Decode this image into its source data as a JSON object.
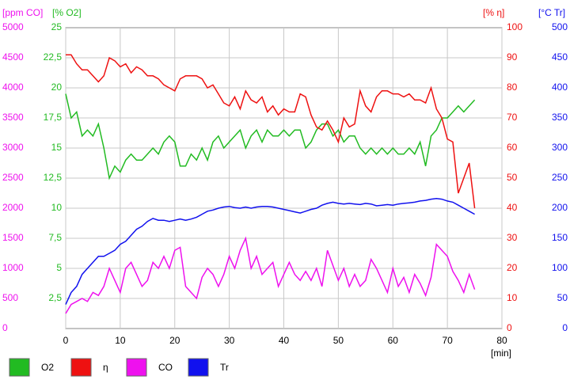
{
  "chart_data": {
    "type": "line",
    "x_label": "[min]",
    "xlim": [
      0,
      80
    ],
    "xticks": [
      0,
      10,
      20,
      30,
      40,
      50,
      60,
      70,
      80
    ],
    "grid": true,
    "x": [
      0,
      1,
      2,
      3,
      4,
      5,
      6,
      7,
      8,
      9,
      10,
      11,
      12,
      13,
      14,
      15,
      16,
      17,
      18,
      19,
      20,
      21,
      22,
      23,
      24,
      25,
      26,
      27,
      28,
      29,
      30,
      31,
      32,
      33,
      34,
      35,
      36,
      37,
      38,
      39,
      40,
      41,
      42,
      43,
      44,
      45,
      46,
      47,
      48,
      49,
      50,
      51,
      52,
      53,
      54,
      55,
      56,
      57,
      58,
      59,
      60,
      61,
      62,
      63,
      64,
      65,
      66,
      67,
      68,
      69,
      70,
      71,
      72,
      73,
      74,
      75
    ],
    "series": [
      {
        "name": "O2",
        "color": "#22bb22",
        "axis_label": "[% O2]",
        "ylim": [
          0,
          25
        ],
        "yticks": [
          {
            "value": 2.5,
            "label": "2,5"
          },
          5,
          {
            "value": 7.5,
            "label": "7,5"
          },
          10,
          {
            "value": 12.5,
            "label": "12,5"
          },
          15,
          {
            "value": 17.5,
            "label": "17,5"
          },
          20,
          {
            "value": 22.5,
            "label": "22,5"
          },
          25
        ],
        "values": [
          19.5,
          17.5,
          18,
          16,
          16.5,
          16,
          17,
          15,
          12.5,
          13.5,
          13,
          14,
          14.5,
          14,
          14,
          14.5,
          15,
          14.5,
          15.5,
          16,
          15.5,
          13.5,
          13.5,
          14.5,
          14,
          15,
          14,
          15.5,
          16,
          15,
          15.5,
          16,
          16.5,
          15,
          16,
          16.5,
          15.5,
          16.5,
          16,
          16,
          16.5,
          16,
          16.5,
          16.5,
          15,
          15.5,
          16.5,
          17,
          17,
          16,
          16.5,
          15.5,
          16,
          16,
          15,
          14.5,
          15,
          14.5,
          15,
          14.5,
          15,
          14.5,
          14.5,
          15,
          14.5,
          15.5,
          13.5,
          16,
          16.5,
          17.5,
          17.5,
          18,
          18.5,
          18,
          18.5,
          19
        ]
      },
      {
        "name": "η",
        "color": "#ee1111",
        "axis_label": "[% η]",
        "ylim": [
          0,
          100
        ],
        "yticks": [
          0,
          10,
          20,
          30,
          40,
          50,
          60,
          70,
          80,
          90,
          100
        ],
        "values": [
          91,
          91,
          88,
          86,
          86,
          84,
          82,
          84,
          90,
          89,
          87,
          88,
          85,
          87,
          86,
          84,
          84,
          83,
          81,
          80,
          79,
          83,
          84,
          84,
          84,
          83,
          80,
          81,
          78,
          75,
          74,
          77,
          73,
          79,
          76,
          75,
          77,
          72,
          74,
          71,
          73,
          72,
          72,
          78,
          77,
          71,
          67,
          66,
          69,
          66,
          62,
          70,
          67,
          68,
          79,
          74,
          72,
          77,
          79,
          79,
          78,
          78,
          77,
          78,
          76,
          76,
          75,
          80,
          73,
          70,
          63,
          62,
          45,
          50,
          55,
          40
        ]
      },
      {
        "name": "CO",
        "color": "#ee11ee",
        "axis_label": "[ppm CO]",
        "ylim": [
          0,
          5000
        ],
        "yticks": [
          0,
          500,
          1000,
          1500,
          2000,
          2500,
          3000,
          3500,
          4000,
          4500,
          5000
        ],
        "values": [
          250,
          400,
          450,
          500,
          450,
          600,
          550,
          700,
          1000,
          800,
          600,
          1000,
          1100,
          900,
          700,
          800,
          1100,
          1000,
          1200,
          1000,
          1300,
          1350,
          700,
          600,
          500,
          850,
          1000,
          900,
          700,
          900,
          1200,
          1000,
          1300,
          1500,
          1000,
          1200,
          900,
          1000,
          1100,
          700,
          900,
          1100,
          900,
          800,
          950,
          800,
          1000,
          700,
          1300,
          1050,
          800,
          1000,
          700,
          900,
          700,
          800,
          1150,
          1000,
          800,
          600,
          1000,
          700,
          850,
          600,
          900,
          750,
          550,
          850,
          1400,
          1300,
          1200,
          950,
          800,
          600,
          900,
          650
        ]
      },
      {
        "name": "Tr",
        "color": "#1111ee",
        "axis_label": "[°C Tr]",
        "ylim": [
          0,
          500
        ],
        "yticks": [
          0,
          50,
          100,
          150,
          200,
          250,
          300,
          350,
          400,
          450,
          500
        ],
        "values": [
          40,
          60,
          70,
          90,
          100,
          110,
          120,
          120,
          125,
          130,
          140,
          145,
          155,
          165,
          170,
          178,
          183,
          180,
          180,
          178,
          180,
          182,
          180,
          182,
          185,
          190,
          195,
          197,
          200,
          202,
          203,
          201,
          200,
          202,
          200,
          202,
          203,
          203,
          202,
          200,
          198,
          196,
          194,
          192,
          195,
          198,
          200,
          205,
          208,
          210,
          208,
          207,
          208,
          207,
          206,
          208,
          207,
          204,
          205,
          206,
          205,
          207,
          208,
          209,
          210,
          212,
          213,
          215,
          216,
          215,
          212,
          210,
          205,
          200,
          195,
          190
        ]
      }
    ]
  }
}
